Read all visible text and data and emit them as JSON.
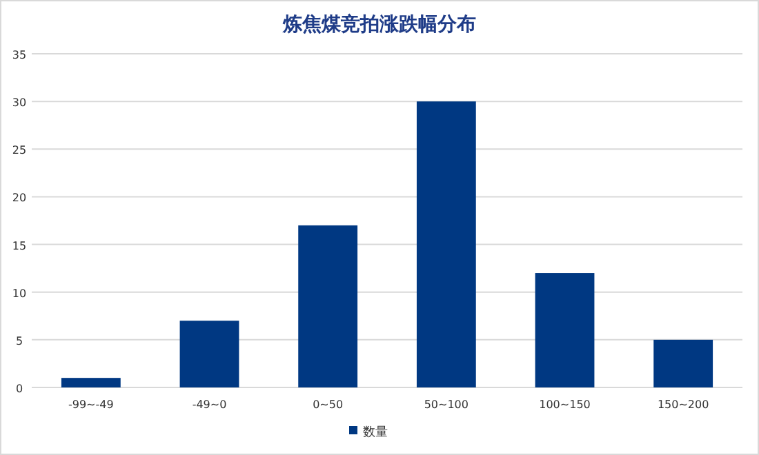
{
  "chart_data": {
    "type": "bar",
    "title": "炼焦煤竞拍涨跌幅分布",
    "categories": [
      "-99~-49",
      "-49~0",
      "0~50",
      "50~100",
      "100~150",
      "150~200"
    ],
    "series": [
      {
        "name": "数量",
        "color": "#003882",
        "values": [
          1,
          7,
          17,
          30,
          12,
          5
        ]
      }
    ],
    "ylim": [
      0,
      35
    ],
    "yticks": [
      0,
      5,
      10,
      15,
      20,
      25,
      30,
      35
    ],
    "grid": "y",
    "legend": "bottom"
  }
}
